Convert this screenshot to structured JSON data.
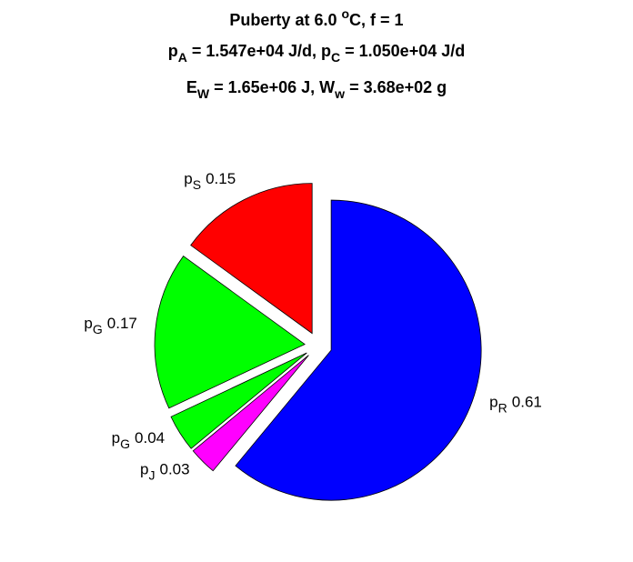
{
  "chart_data": {
    "type": "pie",
    "title": [
      [
        "Puberty at 6.0 ",
        {
          "sup": "o"
        },
        "C, f = 1"
      ],
      [
        "p",
        {
          "sub": "A"
        },
        " = 1.547e+04 J/d,  p",
        {
          "sub": "C"
        },
        " = 1.050e+04 J/d"
      ],
      [
        "E",
        {
          "sub": "W"
        },
        " = 1.65e+06 J, W",
        {
          "sub": "w"
        },
        " = 3.68e+02 g"
      ]
    ],
    "categories": [
      {
        "text": "p",
        "sub": "R"
      },
      {
        "text": "p",
        "sub": "J"
      },
      {
        "text": "p",
        "sub": "G"
      },
      {
        "text": "p",
        "sub": "G"
      },
      {
        "text": "p",
        "sub": "S"
      }
    ],
    "values": [
      0.61,
      0.03,
      0.04,
      0.17,
      0.15
    ],
    "colors": [
      "#0000ff",
      "#ff00ff",
      "#00ff00",
      "#00ff00",
      "#ff0000"
    ],
    "explode": [
      true,
      true,
      true,
      true,
      true
    ]
  }
}
